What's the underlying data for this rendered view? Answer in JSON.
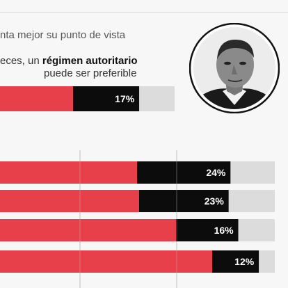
{
  "header": {
    "subtitle": "nta mejor su punto de vista",
    "option_pre": "eces, un ",
    "option_bold": "régimen autoritario",
    "option_line2": "puede ser preferible"
  },
  "portrait": {
    "alt": "portrait-photo"
  },
  "colors": {
    "red": "#e8404b",
    "black": "#0c0c0c",
    "gray": "#dcdcdc",
    "grid": "#bdbdbd"
  },
  "chart_data": [
    {
      "type": "bar",
      "series": [
        {
          "values": [
            17
          ],
          "labels": [
            "17%"
          ]
        }
      ]
    },
    {
      "type": "bar",
      "series": [
        {
          "values": [
            24,
            23,
            16,
            12
          ],
          "labels": [
            "24%",
            "23%",
            "16%",
            "12%"
          ]
        }
      ]
    }
  ]
}
